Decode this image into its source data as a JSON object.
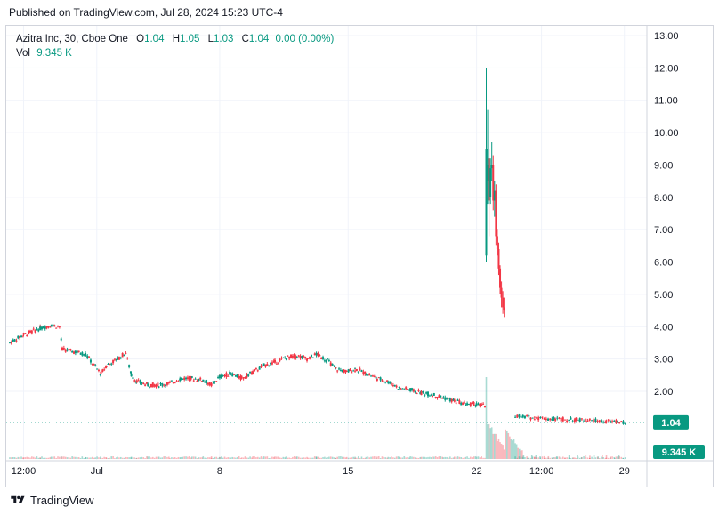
{
  "header": {
    "text": "Published on TradingView.com, Jul 28, 2024 15:23 UTC-4"
  },
  "legend": {
    "symbol": "Azitra Inc, 30, Cboe One",
    "o_label": "O",
    "o_value": "1.04",
    "h_label": "H",
    "h_value": "1.05",
    "l_label": "L",
    "l_value": "1.03",
    "c_label": "C",
    "c_value": "1.04",
    "change": "0.00 (0.00%)",
    "vol_label": "Vol",
    "vol_value": "9.345 K"
  },
  "footer": {
    "brand": "TradingView"
  },
  "colors": {
    "up": "#089981",
    "down": "#f23645",
    "grid": "#f0f3fa",
    "text": "#131722",
    "border": "#d1d4dc"
  },
  "chart_data": {
    "type": "candlestick",
    "y_axis": {
      "min": 0.0,
      "max": 13.0,
      "ticks": [
        "13.00",
        "12.00",
        "11.00",
        "10.00",
        "9.00",
        "8.00",
        "7.00",
        "6.00",
        "5.00",
        "4.00",
        "3.00",
        "2.00"
      ],
      "position": "right"
    },
    "x_axis": {
      "ticks": [
        {
          "label": "12:00",
          "x": 10
        },
        {
          "label": "Jul",
          "x": 63
        },
        {
          "label": "8",
          "x": 152
        },
        {
          "label": "15",
          "x": 245
        },
        {
          "label": "22",
          "x": 338
        },
        {
          "label": "12:00",
          "x": 385
        },
        {
          "label": "29",
          "x": 445
        }
      ],
      "domain": [
        0,
        460
      ]
    },
    "last_price": {
      "value": 1.04,
      "label": "1.04"
    },
    "last_volume": {
      "label": "9.345 K"
    },
    "price_path": [
      {
        "x": 0,
        "c": 3.5
      },
      {
        "x": 10,
        "c": 3.75
      },
      {
        "x": 22,
        "c": 3.95
      },
      {
        "x": 30,
        "c": 4.05
      },
      {
        "x": 36,
        "c": 4.0
      },
      {
        "x": 38,
        "c": 3.3
      },
      {
        "x": 55,
        "c": 3.15
      },
      {
        "x": 62,
        "c": 2.75
      },
      {
        "x": 66,
        "c": 2.55
      },
      {
        "x": 70,
        "c": 2.8
      },
      {
        "x": 78,
        "c": 3.0
      },
      {
        "x": 84,
        "c": 3.2
      },
      {
        "x": 88,
        "c": 2.5
      },
      {
        "x": 92,
        "c": 2.3
      },
      {
        "x": 100,
        "c": 2.2
      },
      {
        "x": 108,
        "c": 2.2
      },
      {
        "x": 116,
        "c": 2.25
      },
      {
        "x": 124,
        "c": 2.4
      },
      {
        "x": 132,
        "c": 2.4
      },
      {
        "x": 140,
        "c": 2.35
      },
      {
        "x": 146,
        "c": 2.2
      },
      {
        "x": 152,
        "c": 2.45
      },
      {
        "x": 160,
        "c": 2.55
      },
      {
        "x": 168,
        "c": 2.4
      },
      {
        "x": 176,
        "c": 2.6
      },
      {
        "x": 184,
        "c": 2.8
      },
      {
        "x": 192,
        "c": 2.9
      },
      {
        "x": 200,
        "c": 3.05
      },
      {
        "x": 208,
        "c": 3.1
      },
      {
        "x": 216,
        "c": 3.0
      },
      {
        "x": 222,
        "c": 3.15
      },
      {
        "x": 230,
        "c": 2.95
      },
      {
        "x": 236,
        "c": 2.7
      },
      {
        "x": 244,
        "c": 2.6
      },
      {
        "x": 250,
        "c": 2.7
      },
      {
        "x": 258,
        "c": 2.55
      },
      {
        "x": 266,
        "c": 2.4
      },
      {
        "x": 274,
        "c": 2.3
      },
      {
        "x": 282,
        "c": 2.1
      },
      {
        "x": 290,
        "c": 2.05
      },
      {
        "x": 298,
        "c": 1.95
      },
      {
        "x": 306,
        "c": 1.9
      },
      {
        "x": 314,
        "c": 1.8
      },
      {
        "x": 322,
        "c": 1.7
      },
      {
        "x": 330,
        "c": 1.6
      },
      {
        "x": 338,
        "c": 1.6
      },
      {
        "x": 344,
        "c": 1.55
      }
    ],
    "spike_candles": [
      {
        "x": 345,
        "o": 6.2,
        "h": 12.0,
        "l": 6.0,
        "c": 9.5
      },
      {
        "x": 346,
        "o": 8.5,
        "h": 10.7,
        "l": 7.8,
        "c": 9.0
      },
      {
        "x": 347,
        "o": 9.2,
        "h": 9.5,
        "l": 6.8,
        "c": 7.9
      },
      {
        "x": 348,
        "o": 8.0,
        "h": 9.2,
        "l": 7.8,
        "c": 8.9
      },
      {
        "x": 349,
        "o": 8.9,
        "h": 9.7,
        "l": 8.5,
        "c": 9.0
      },
      {
        "x": 350,
        "o": 9.0,
        "h": 9.3,
        "l": 7.6,
        "c": 7.9
      },
      {
        "x": 351,
        "o": 7.9,
        "h": 8.5,
        "l": 7.4,
        "c": 8.2
      },
      {
        "x": 352,
        "o": 8.2,
        "h": 8.4,
        "l": 6.5,
        "c": 6.8
      },
      {
        "x": 353,
        "o": 6.8,
        "h": 7.0,
        "l": 6.2,
        "c": 6.4
      },
      {
        "x": 354,
        "o": 6.4,
        "h": 6.6,
        "l": 5.6,
        "c": 5.8
      },
      {
        "x": 355,
        "o": 5.8,
        "h": 5.9,
        "l": 5.0,
        "c": 5.2
      },
      {
        "x": 356,
        "o": 5.2,
        "h": 5.4,
        "l": 4.6,
        "c": 4.9
      },
      {
        "x": 357,
        "o": 4.9,
        "h": 5.1,
        "l": 4.4,
        "c": 4.6
      },
      {
        "x": 358,
        "o": 4.6,
        "h": 4.9,
        "l": 4.3,
        "c": 4.5
      }
    ],
    "tail_path": [
      {
        "x": 366,
        "c": 1.25
      },
      {
        "x": 380,
        "c": 1.18
      },
      {
        "x": 395,
        "c": 1.15
      },
      {
        "x": 410,
        "c": 1.12
      },
      {
        "x": 420,
        "c": 1.1
      },
      {
        "x": 432,
        "c": 1.06
      },
      {
        "x": 440,
        "c": 1.05
      },
      {
        "x": 446,
        "c": 1.04
      }
    ]
  }
}
